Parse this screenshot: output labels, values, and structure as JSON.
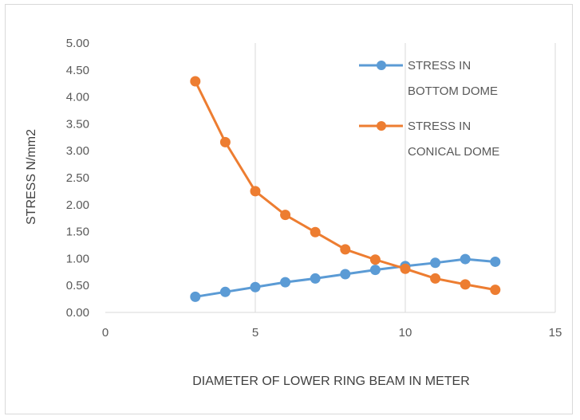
{
  "chart_data": {
    "type": "line",
    "title": "",
    "xlabel": "DIAMETER OF LOWER RING BEAM IN METER",
    "ylabel": "STRESS N/mm2",
    "xlim": [
      0,
      15
    ],
    "ylim": [
      0,
      5
    ],
    "xticks": [
      "0",
      "5",
      "10",
      "15"
    ],
    "yticks": [
      "0.00",
      "0.50",
      "1.00",
      "1.50",
      "2.00",
      "2.50",
      "3.00",
      "3.50",
      "4.00",
      "4.50",
      "5.00"
    ],
    "grid": "vertical",
    "legend_position": "top-right",
    "x": [
      3,
      4,
      5,
      6,
      7,
      8,
      9,
      10,
      11,
      12,
      13
    ],
    "series": [
      {
        "name": "STRESS IN BOTTOM DOME",
        "legend_lines": [
          "STRESS IN",
          "BOTTOM DOME"
        ],
        "color": "#5b9bd5",
        "values": [
          0.29,
          0.38,
          0.47,
          0.56,
          0.63,
          0.71,
          0.79,
          0.86,
          0.92,
          0.99,
          0.94
        ]
      },
      {
        "name": "STRESS IN CONICAL DOME",
        "legend_lines": [
          "STRESS IN",
          "CONICAL DOME"
        ],
        "color": "#ed7d31",
        "values": [
          4.29,
          3.16,
          2.25,
          1.81,
          1.49,
          1.17,
          0.98,
          0.81,
          0.63,
          0.52,
          0.42
        ]
      }
    ]
  }
}
